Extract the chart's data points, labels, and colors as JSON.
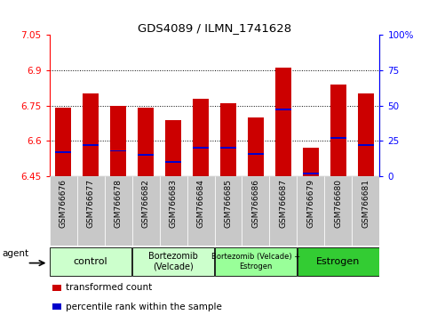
{
  "title": "GDS4089 / ILMN_1741628",
  "samples": [
    "GSM766676",
    "GSM766677",
    "GSM766678",
    "GSM766682",
    "GSM766683",
    "GSM766684",
    "GSM766685",
    "GSM766686",
    "GSM766687",
    "GSM766679",
    "GSM766680",
    "GSM766681"
  ],
  "bar_base": 6.45,
  "bar_tops": [
    6.74,
    6.8,
    6.75,
    6.74,
    6.69,
    6.78,
    6.76,
    6.7,
    6.91,
    6.57,
    6.84,
    6.8
  ],
  "percentile_vals": [
    17,
    22,
    18,
    15,
    10,
    20,
    20,
    16,
    47,
    2,
    27,
    22
  ],
  "ylim_left": [
    6.45,
    7.05
  ],
  "ylim_right": [
    0,
    100
  ],
  "yticks_left": [
    6.45,
    6.6,
    6.75,
    6.9,
    7.05
  ],
  "ytick_labels_left": [
    "6.45",
    "6.6",
    "6.75",
    "6.9",
    "7.05"
  ],
  "yticks_right": [
    0,
    25,
    50,
    75,
    100
  ],
  "ytick_labels_right": [
    "0",
    "25",
    "50",
    "75",
    "100%"
  ],
  "hlines": [
    6.6,
    6.75,
    6.9
  ],
  "bar_color": "#cc0000",
  "blue_color": "#0000cc",
  "groups": [
    {
      "label": "control",
      "indices": [
        0,
        1,
        2
      ],
      "color": "#ccffcc",
      "font_size": 8
    },
    {
      "label": "Bortezomib\n(Velcade)",
      "indices": [
        3,
        4,
        5
      ],
      "color": "#ccffcc",
      "font_size": 7
    },
    {
      "label": "Bortezomib (Velcade) +\nEstrogen",
      "indices": [
        6,
        7,
        8
      ],
      "color": "#99ff99",
      "font_size": 6
    },
    {
      "label": "Estrogen",
      "indices": [
        9,
        10,
        11
      ],
      "color": "#33cc33",
      "font_size": 8
    }
  ],
  "legend_items": [
    {
      "label": "transformed count",
      "color": "#cc0000"
    },
    {
      "label": "percentile rank within the sample",
      "color": "#0000cc"
    }
  ],
  "agent_label": "agent",
  "bar_width": 0.6,
  "background_gray": "#c8c8c8"
}
